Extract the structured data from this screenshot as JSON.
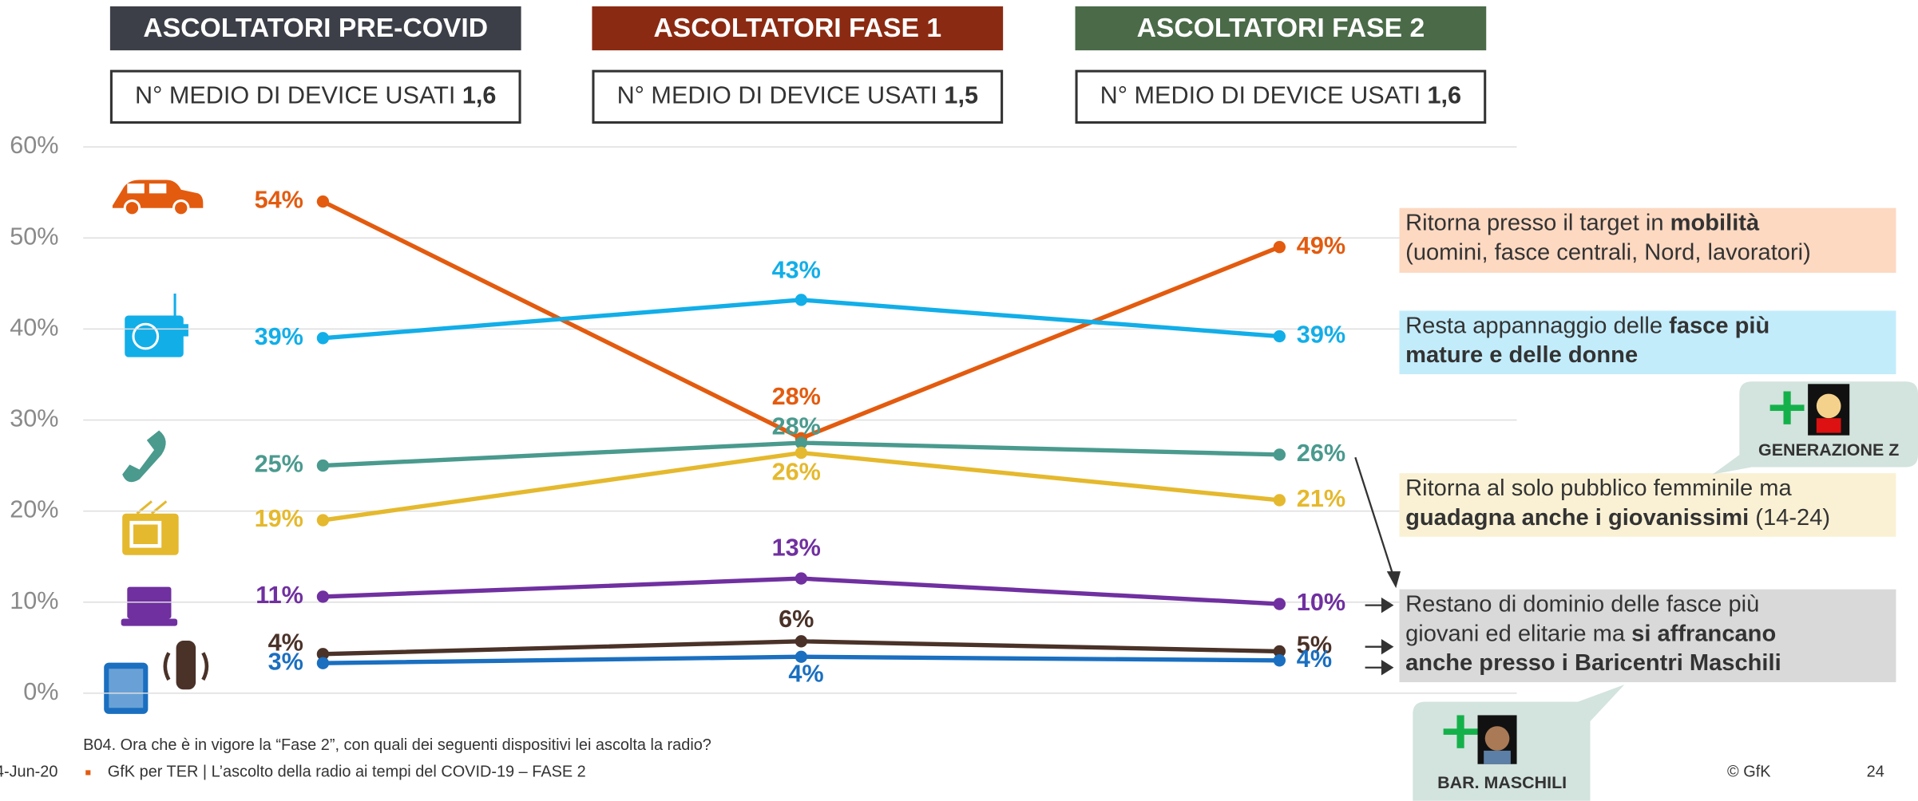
{
  "chart_data": {
    "type": "line",
    "categories": [
      "ASCOLTATORI PRE-COVID",
      "ASCOLTATORI FASE 1",
      "ASCOLTATORI FASE 2"
    ],
    "category_colors": [
      "#3c3f47",
      "#8b2a12",
      "#4a6a48"
    ],
    "device_label": "N° MEDIO DI DEVICE USATI",
    "device_counts": [
      {
        "value": 1.6,
        "label": "1,6"
      },
      {
        "value": 1.5,
        "label": "1,5"
      },
      {
        "value": 1.6,
        "label": "1,6"
      }
    ],
    "ylim": [
      0,
      60
    ],
    "yticks": [
      {
        "value": 0,
        "label": "0%"
      },
      {
        "value": 10,
        "label": "10%"
      },
      {
        "value": 20,
        "label": "20%"
      },
      {
        "value": 30,
        "label": "30%"
      },
      {
        "value": 40,
        "label": "40%"
      },
      {
        "value": 50,
        "label": "50%"
      },
      {
        "value": 60,
        "label": "60%"
      }
    ],
    "grid": true,
    "series": [
      {
        "color": "#e35b0f",
        "values": [
          54,
          28,
          49
        ],
        "value_labels": [
          "54%",
          "28%",
          "49%"
        ]
      },
      {
        "color": "#12aee8",
        "values": [
          39,
          43.2,
          39.2
        ],
        "value_labels": [
          "39%",
          "43%",
          "39%"
        ]
      },
      {
        "color": "#4a9a8e",
        "values": [
          25,
          27.5,
          26.2
        ],
        "value_labels": [
          "25%",
          "28%",
          "26%"
        ]
      },
      {
        "color": "#e5b92e",
        "values": [
          19,
          26.4,
          21.2
        ],
        "value_labels": [
          "19%",
          "26%",
          "21%"
        ]
      },
      {
        "color": "#7030a0",
        "values": [
          10.6,
          12.6,
          9.8
        ],
        "value_labels": [
          "11%",
          "13%",
          "10%"
        ]
      },
      {
        "color": "#4a3228",
        "values": [
          4.3,
          5.7,
          4.6
        ],
        "value_labels": [
          "4%",
          "6%",
          "5%"
        ]
      },
      {
        "color": "#1a6fc0",
        "values": [
          3.3,
          4.0,
          3.6
        ],
        "value_labels": [
          "3%",
          "4%",
          "4%"
        ]
      }
    ],
    "annotations": [
      {
        "color": "#fdd9c2",
        "lines": [
          [
            "Ritorna presso il target in ",
            {
              "text": "mobilità",
              "bold": true
            }
          ],
          [
            "(uomini, fasce centrali, Nord, lavoratori)"
          ]
        ]
      },
      {
        "color": "#c3ecfb",
        "lines": [
          [
            "Resta appannaggio delle ",
            {
              "text": "fasce più",
              "bold": true
            }
          ],
          [
            {
              "text": "mature e delle donne",
              "bold": true
            }
          ]
        ]
      },
      {
        "color": "#faf1d4",
        "lines": [
          [
            "Ritorna al solo pubblico femminile ma"
          ],
          [
            {
              "text": "guadagna anche i giovanissimi",
              "bold": true
            },
            " (14-24)"
          ]
        ]
      },
      {
        "color": "#d9d9d9",
        "lines": [
          [
            "Restano di dominio delle fasce più"
          ],
          [
            "giovani ed elitarie ma ",
            {
              "text": "si affrancano",
              "bold": true
            }
          ],
          [
            {
              "text": "anche presso i Baricentri Maschili",
              "bold": true
            }
          ]
        ]
      }
    ],
    "callouts": [
      "GENERAZIONE Z",
      "BAR. MASCHILI"
    ]
  },
  "footer": {
    "question": "B04. Ora che è in vigore la “Fase 2”, con quali dei seguenti dispositivi lei ascolta la radio?",
    "date": "4-Jun-20",
    "source": "GfK per TER | L’ascolto della radio ai tempi del COVID-19 – FASE 2",
    "copyright": "© GfK",
    "page": "24"
  }
}
